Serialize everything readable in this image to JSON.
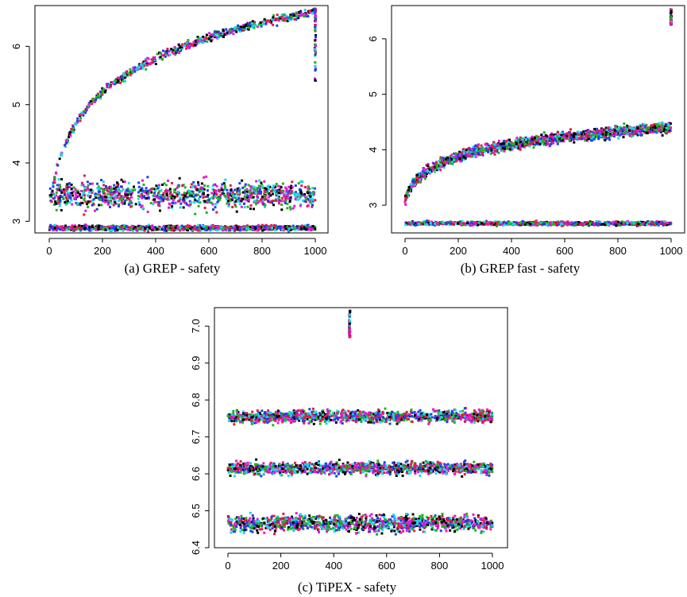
{
  "figure": {
    "palette": [
      "#000000",
      "#e6194b",
      "#1fb51f",
      "#1f3fe6",
      "#17d9e3",
      "#e619d9"
    ]
  },
  "chart_data": [
    {
      "type": "scatter",
      "caption": "(a) GREP - safety",
      "title": "",
      "xlabel": "",
      "ylabel": "",
      "xlim": [
        0,
        1000
      ],
      "ylim": [
        2.8,
        6.7
      ],
      "xticks": [
        "0",
        "200",
        "400",
        "600",
        "800",
        "1000"
      ],
      "yticks": [
        "3",
        "4",
        "5",
        "6"
      ],
      "grid": false,
      "series_description": [
        {
          "band": "upper curve",
          "x_range": [
            0,
            1000
          ],
          "y_start": 3.2,
          "y_end": 6.6
        },
        {
          "band": "middle band",
          "x_range": [
            0,
            1000
          ],
          "y_range": [
            3.1,
            3.8
          ]
        },
        {
          "band": "lower band",
          "x_range": [
            0,
            1000
          ],
          "y_range": [
            2.82,
            2.95
          ]
        },
        {
          "band": "final column",
          "x": 1000,
          "y_range": [
            5.4,
            6.65
          ]
        }
      ]
    },
    {
      "type": "scatter",
      "caption": "(b) GREP fast - safety",
      "title": "",
      "xlabel": "",
      "ylabel": "",
      "xlim": [
        0,
        1000
      ],
      "ylim": [
        2.5,
        6.6
      ],
      "xticks": [
        "0",
        "200",
        "400",
        "600",
        "800",
        "1000"
      ],
      "yticks": [
        "3",
        "4",
        "5",
        "6"
      ],
      "grid": false,
      "series_description": [
        {
          "band": "rising band",
          "x_range": [
            0,
            1000
          ],
          "y_start": 3.1,
          "y_end": 4.4
        },
        {
          "band": "lower band",
          "x_range": [
            0,
            1000
          ],
          "y_range": [
            2.62,
            2.72
          ]
        },
        {
          "band": "final outliers",
          "x": 1000,
          "y_range": [
            6.25,
            6.55
          ]
        }
      ]
    },
    {
      "type": "scatter",
      "caption": "(c) TiPEX - safety",
      "title": "",
      "xlabel": "",
      "ylabel": "",
      "xlim": [
        0,
        1000
      ],
      "ylim": [
        6.4,
        7.05
      ],
      "xticks": [
        "0",
        "200",
        "400",
        "600",
        "800",
        "1000"
      ],
      "yticks": [
        "6.4",
        "6.5",
        "6.6",
        "6.7",
        "6.8",
        "6.9",
        "7.0"
      ],
      "grid": false,
      "series_description": [
        {
          "band": "top band",
          "x_range": [
            0,
            1000
          ],
          "y_range": [
            6.73,
            6.78
          ]
        },
        {
          "band": "middle band",
          "x_range": [
            0,
            1000
          ],
          "y_range": [
            6.59,
            6.64
          ]
        },
        {
          "band": "bottom band",
          "x_range": [
            0,
            1000
          ],
          "y_range": [
            6.43,
            6.5
          ]
        },
        {
          "band": "outlier column",
          "x": 460,
          "y_range": [
            6.97,
            7.05
          ]
        }
      ]
    }
  ]
}
